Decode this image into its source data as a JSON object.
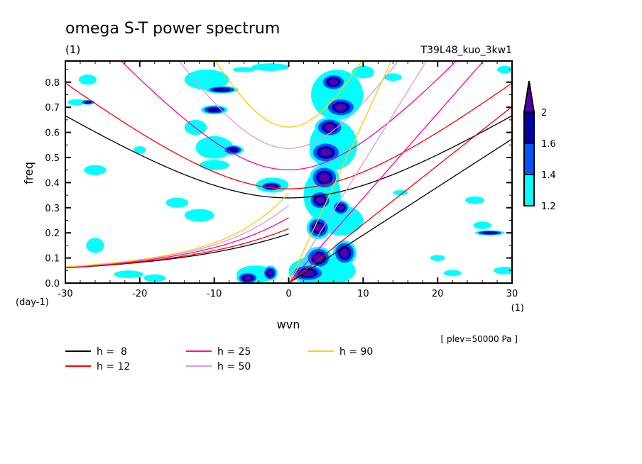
{
  "chart_data": {
    "type": "heatmap",
    "title": "omega S-T power spectrum",
    "units_label": "(1)",
    "run_label": "T39L48_kuo_3kw1",
    "xlabel": "wvn",
    "x_units": "(1)",
    "ylabel": "freq",
    "y_units": "(day-1)",
    "annotation": "[ plev=50000 Pa ]",
    "xlim": [
      -30,
      30
    ],
    "ylim": [
      0,
      0.88
    ],
    "x_ticks": [
      -30,
      -20,
      -10,
      0,
      10,
      20,
      30
    ],
    "x_tick_labels": [
      "-30",
      "-20",
      "-10",
      "0",
      "10",
      "20",
      "30"
    ],
    "y_ticks": [
      0,
      0.1,
      0.2,
      0.3,
      0.4,
      0.5,
      0.6,
      0.7,
      0.8
    ],
    "y_tick_labels": [
      "0.0",
      "0.1",
      "0.2",
      "0.3",
      "0.4",
      "0.5",
      "0.6",
      "0.7",
      "0.8"
    ],
    "colorbar": {
      "levels": [
        1.2,
        1.4,
        1.6,
        2
      ],
      "labels": [
        "1.2",
        "1.4",
        "1.6",
        "2"
      ],
      "colors": [
        "#00ffff",
        "#0055ff",
        "#0000aa",
        "#5500aa"
      ],
      "extend": "max"
    },
    "dispersion_curves": [
      {
        "label": "h =  8",
        "h": 8,
        "color": "#000000"
      },
      {
        "label": "h = 12",
        "h": 12,
        "color": "#ff0000"
      },
      {
        "label": "h = 25",
        "h": 25,
        "color": "#ff00aa"
      },
      {
        "label": "h = 50",
        "h": 50,
        "color": "#dd99dd"
      },
      {
        "label": "h = 90",
        "h": 90,
        "color": "#ffcc00"
      }
    ],
    "power_regions": [
      {
        "k": 6,
        "f": 0.8,
        "rk": 1.8,
        "rf": 0.035,
        "level": 3
      },
      {
        "k": 7,
        "f": 0.7,
        "rk": 2.2,
        "rf": 0.04,
        "level": 3
      },
      {
        "k": 5.5,
        "f": 0.62,
        "rk": 2.0,
        "rf": 0.04,
        "level": 3
      },
      {
        "k": 5,
        "f": 0.52,
        "rk": 2.2,
        "rf": 0.045,
        "level": 3
      },
      {
        "k": 4.8,
        "f": 0.42,
        "rk": 2.0,
        "rf": 0.05,
        "level": 3
      },
      {
        "k": 4.2,
        "f": 0.33,
        "rk": 1.6,
        "rf": 0.04,
        "level": 3
      },
      {
        "k": 4,
        "f": 0.22,
        "rk": 1.6,
        "rf": 0.045,
        "level": 3
      },
      {
        "k": 4,
        "f": 0.1,
        "rk": 1.8,
        "rf": 0.045,
        "level": 3
      },
      {
        "k": 2.5,
        "f": 0.04,
        "rk": 2.5,
        "rf": 0.035,
        "level": 3
      },
      {
        "k": 7.5,
        "f": 0.12,
        "rk": 1.6,
        "rf": 0.05,
        "level": 3
      },
      {
        "k": 7,
        "f": 0.3,
        "rk": 1.2,
        "rf": 0.03,
        "level": 3
      },
      {
        "k": -5.5,
        "f": 0.02,
        "rk": 1.5,
        "rf": 0.025,
        "level": 3
      },
      {
        "k": -2.5,
        "f": 0.04,
        "rk": 1.0,
        "rf": 0.03,
        "level": 3
      },
      {
        "k": -2.3,
        "f": 0.385,
        "rk": 1.6,
        "rf": 0.02,
        "level": 3
      },
      {
        "k": -10,
        "f": 0.69,
        "rk": 1.8,
        "rf": 0.018,
        "level": 2
      },
      {
        "k": -9,
        "f": 0.77,
        "rk": 2.2,
        "rf": 0.015,
        "level": 2
      },
      {
        "k": 27,
        "f": 0.2,
        "rk": 2.0,
        "rf": 0.01,
        "level": 2
      },
      {
        "k": -27,
        "f": 0.72,
        "rk": 1.0,
        "rf": 0.01,
        "level": 2
      },
      {
        "k": -7.5,
        "f": 0.53,
        "rk": 1.4,
        "rf": 0.02,
        "level": 2
      }
    ],
    "weak_regions": [
      {
        "k": -11,
        "f": 0.81,
        "rk": 3,
        "rf": 0.04
      },
      {
        "k": -12.5,
        "f": 0.62,
        "rk": 1.5,
        "rf": 0.03
      },
      {
        "k": -10,
        "f": 0.54,
        "rk": 2.5,
        "rf": 0.045
      },
      {
        "k": -10,
        "f": 0.47,
        "rk": 2,
        "rf": 0.02
      },
      {
        "k": -26,
        "f": 0.45,
        "rk": 1.5,
        "rf": 0.02
      },
      {
        "k": -15,
        "f": 0.32,
        "rk": 1.5,
        "rf": 0.02
      },
      {
        "k": -12,
        "f": 0.27,
        "rk": 2,
        "rf": 0.025
      },
      {
        "k": -27,
        "f": 0.81,
        "rk": 1.2,
        "rf": 0.02
      },
      {
        "k": -28.5,
        "f": 0.72,
        "rk": 1.2,
        "rf": 0.012
      },
      {
        "k": -20,
        "f": 0.53,
        "rk": 0.8,
        "rf": 0.015
      },
      {
        "k": -26,
        "f": 0.15,
        "rk": 1.2,
        "rf": 0.03
      },
      {
        "k": -21.5,
        "f": 0.035,
        "rk": 2,
        "rf": 0.015
      },
      {
        "k": -18,
        "f": 0.02,
        "rk": 1.5,
        "rf": 0.015
      },
      {
        "k": 25,
        "f": 0.33,
        "rk": 1.3,
        "rf": 0.015
      },
      {
        "k": 26,
        "f": 0.23,
        "rk": 1.2,
        "rf": 0.015
      },
      {
        "k": 20,
        "f": 0.1,
        "rk": 1.0,
        "rf": 0.012
      },
      {
        "k": 29,
        "f": 0.05,
        "rk": 1.5,
        "rf": 0.015
      },
      {
        "k": 22,
        "f": 0.04,
        "rk": 1.2,
        "rf": 0.012
      },
      {
        "k": 15,
        "f": 0.36,
        "rk": 1.0,
        "rf": 0.01
      },
      {
        "k": 29,
        "f": 0.85,
        "rk": 1.0,
        "rf": 0.015
      },
      {
        "k": 10,
        "f": 0.84,
        "rk": 1.5,
        "rf": 0.025
      },
      {
        "k": 14,
        "f": 0.82,
        "rk": 1.2,
        "rf": 0.015
      },
      {
        "k": -2.5,
        "f": 0.86,
        "rk": 2.5,
        "rf": 0.015
      },
      {
        "k": -6,
        "f": 0.85,
        "rk": 1.5,
        "rf": 0.01
      },
      {
        "k": 4.5,
        "f": 0.05,
        "rk": 4.5,
        "rf": 0.06
      },
      {
        "k": -4.5,
        "f": 0.035,
        "rk": 2.5,
        "rf": 0.035
      },
      {
        "k": 7,
        "f": 0.25,
        "rk": 3,
        "rf": 0.06
      },
      {
        "k": 6,
        "f": 0.55,
        "rk": 3.2,
        "rf": 0.1
      },
      {
        "k": 6.5,
        "f": 0.75,
        "rk": 3.5,
        "rf": 0.1
      },
      {
        "k": 4.5,
        "f": 0.35,
        "rk": 2.5,
        "rf": 0.1
      },
      {
        "k": -2.2,
        "f": 0.39,
        "rk": 2.2,
        "rf": 0.03
      }
    ]
  },
  "legend": {
    "items": [
      "h =  8",
      "h = 12",
      "h = 25",
      "h = 50",
      "h = 90"
    ]
  }
}
